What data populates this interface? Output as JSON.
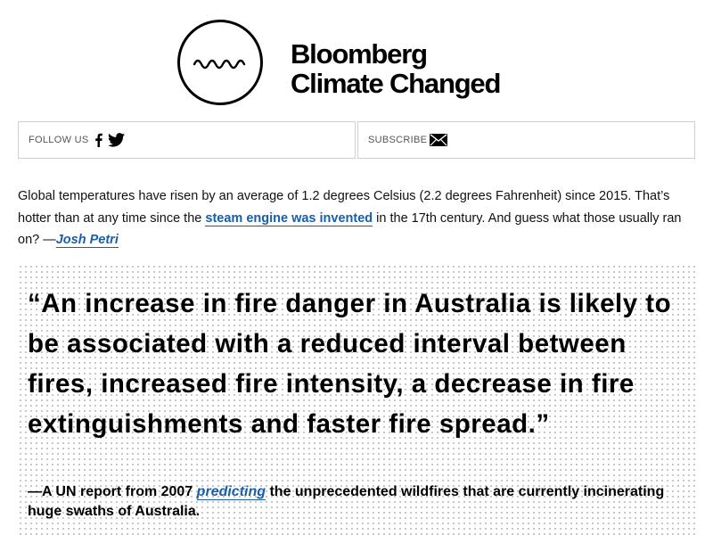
{
  "masthead": {
    "brand_line1": "Bloomberg",
    "brand_line2": "Climate Changed",
    "logo_icon": "wave-circle-icon"
  },
  "social_bar": {
    "follow_label": "FOLLOW US",
    "facebook_icon": "facebook-icon",
    "twitter_icon": "twitter-icon",
    "subscribe_label": "SUBSCRIBE",
    "mail_icon": "mail-icon"
  },
  "intro": {
    "text_before_link": "Global temperatures have risen by an average of 1.2 degrees Celsius (2.2 degrees Fahrenheit) since 2015. That’s hotter than at any time since the ",
    "link_text": "steam engine was invented",
    "text_after_link": " in the 17th century. And guess what those usually ran on? —",
    "author": "Josh Petri"
  },
  "quote": {
    "text": "“An increase in fire danger in Australia is likely to be associated with a reduced interval between fires, increased fire intensity, a decrease in fire extinguishments and faster fire spread.”",
    "attrib_before": "—A UN report from 2007 ",
    "attrib_link": "predicting",
    "attrib_after": " the unprecedented wildfires that are currently incinerating huge swaths of Australia."
  },
  "colors": {
    "link": "#1a5ea8",
    "text": "#111111",
    "border": "#cfcfcf"
  }
}
